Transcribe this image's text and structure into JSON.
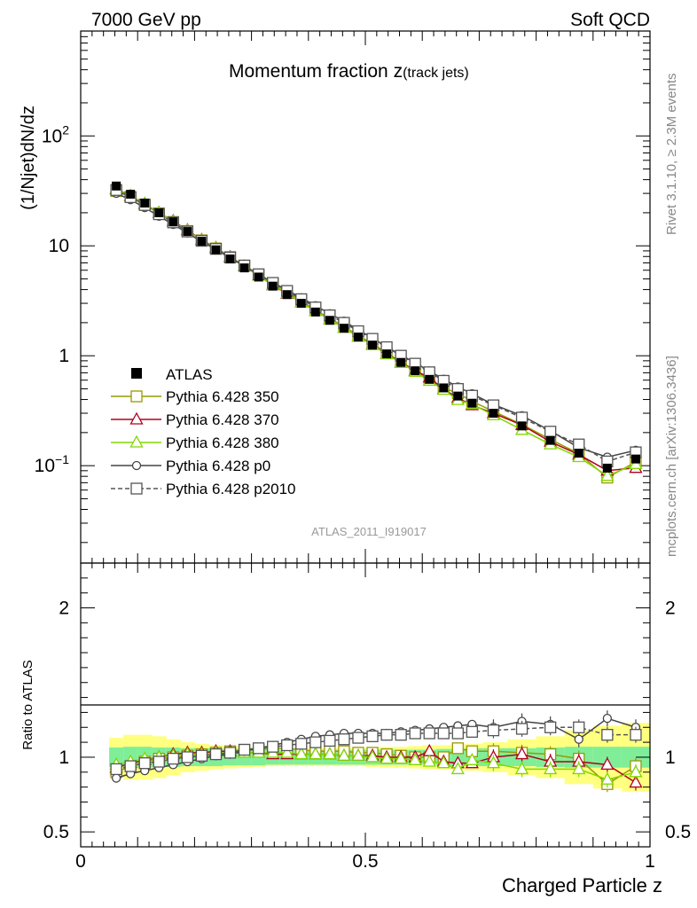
{
  "header": {
    "left": "7000 GeV pp",
    "right": "Soft QCD"
  },
  "side_labels": {
    "rivet": "Rivet 3.1.10, ≥ 2.3M events",
    "mcplots": "mcplots.cern.ch [arXiv:1306.3436]"
  },
  "chart_data": {
    "type": "scatter",
    "title": "Momentum fraction z(track jets)",
    "title_main": "Momentum fraction ",
    "title_var": "z",
    "title_sub": "(track jets)",
    "analysis": "ATLAS_2011_I919017",
    "xlabel": "Charged Particle z",
    "ylabel": "(1/Njet)dN/dz",
    "ratio_ylabel": "Ratio to ATLAS",
    "xlim": [
      0,
      1
    ],
    "ylim": [
      0.013,
      900
    ],
    "yscale": "log",
    "ratio_ylim": [
      0.4,
      2.3
    ],
    "x_ticks": [
      {
        "v": 0,
        "label": "0"
      },
      {
        "v": 0.5,
        "label": "0.5"
      },
      {
        "v": 1,
        "label": "1"
      }
    ],
    "y_ticks": [
      {
        "v": 0.1,
        "base": "10",
        "exp": "−1"
      },
      {
        "v": 1,
        "base": "1",
        "exp": ""
      },
      {
        "v": 10,
        "base": "10",
        "exp": ""
      },
      {
        "v": 100,
        "base": "10",
        "exp": "2"
      }
    ],
    "ratio_ticks": [
      {
        "v": 0.5,
        "label": "0.5"
      },
      {
        "v": 1,
        "label": "1"
      },
      {
        "v": 2,
        "label": "2"
      }
    ],
    "x": [
      0.0625,
      0.0875,
      0.1125,
      0.1375,
      0.1625,
      0.1875,
      0.2125,
      0.2375,
      0.2625,
      0.2875,
      0.3125,
      0.3375,
      0.3625,
      0.3875,
      0.4125,
      0.4375,
      0.4625,
      0.4875,
      0.5125,
      0.5375,
      0.5625,
      0.5875,
      0.6125,
      0.6375,
      0.6625,
      0.6875,
      0.725,
      0.775,
      0.825,
      0.875,
      0.925,
      0.975
    ],
    "data": {
      "name": "ATLAS",
      "values": [
        35,
        29.5,
        24.5,
        20,
        16.5,
        13.5,
        11,
        9.2,
        7.6,
        6.3,
        5.2,
        4.3,
        3.6,
        3.0,
        2.5,
        2.1,
        1.78,
        1.48,
        1.25,
        1.04,
        0.87,
        0.73,
        0.61,
        0.51,
        0.43,
        0.37,
        0.3,
        0.23,
        0.17,
        0.13,
        0.095,
        0.115
      ],
      "band_inner": [
        0.065,
        0.07,
        0.07,
        0.065,
        0.065,
        0.06,
        0.06,
        0.06,
        0.055,
        0.055,
        0.055,
        0.05,
        0.05,
        0.05,
        0.05,
        0.05,
        0.05,
        0.05,
        0.05,
        0.05,
        0.05,
        0.05,
        0.05,
        0.055,
        0.055,
        0.06,
        0.06,
        0.06,
        0.065,
        0.07,
        0.07,
        0.07
      ],
      "band_outer": [
        0.13,
        0.15,
        0.15,
        0.14,
        0.12,
        0.1,
        0.09,
        0.08,
        0.075,
        0.07,
        0.065,
        0.06,
        0.06,
        0.06,
        0.06,
        0.06,
        0.06,
        0.06,
        0.065,
        0.07,
        0.07,
        0.075,
        0.08,
        0.08,
        0.085,
        0.09,
        0.1,
        0.12,
        0.14,
        0.18,
        0.21,
        0.23
      ]
    },
    "series": [
      {
        "name": "Pythia 6.428 350",
        "color": "#999900",
        "marker": "square",
        "dash": "",
        "ratio": [
          0.9,
          0.94,
          0.97,
          0.99,
          1.0,
          1.01,
          1.02,
          1.03,
          1.04,
          1.05,
          1.05,
          1.06,
          1.06,
          1.05,
          1.04,
          1.04,
          1.04,
          1.03,
          1.03,
          1.02,
          1.01,
          1.0,
          1.0,
          1.0,
          1.06,
          1.04,
          1.04,
          1.03,
          1.02,
          0.99,
          0.82,
          0.94
        ]
      },
      {
        "name": "Pythia 6.428 370",
        "color": "#b00020",
        "marker": "triangle",
        "dash": "",
        "ratio": [
          0.93,
          0.96,
          0.98,
          1.0,
          1.02,
          1.03,
          1.03,
          1.04,
          1.04,
          1.03,
          1.03,
          1.02,
          1.02,
          1.02,
          1.02,
          1.02,
          1.01,
          1.01,
          1.01,
          1.0,
          1.0,
          1.0,
          1.04,
          0.97,
          0.96,
          0.96,
          1.0,
          1.02,
          0.97,
          0.97,
          0.95,
          0.83
        ]
      },
      {
        "name": "Pythia 6.428 380",
        "color": "#80d800",
        "marker": "triangle",
        "dash": "",
        "ratio": [
          0.95,
          0.97,
          0.99,
          1.0,
          1.01,
          1.02,
          1.02,
          1.03,
          1.03,
          1.03,
          1.03,
          1.03,
          1.03,
          1.02,
          1.02,
          1.02,
          1.01,
          1.01,
          1.0,
          0.99,
          0.99,
          0.98,
          0.97,
          0.96,
          0.92,
          0.98,
          0.96,
          0.92,
          0.92,
          0.92,
          0.85,
          0.9
        ]
      },
      {
        "name": "Pythia 6.428 p0",
        "color": "#444444",
        "marker": "circle",
        "dash": "",
        "ratio": [
          0.86,
          0.89,
          0.91,
          0.93,
          0.95,
          0.97,
          0.99,
          1.01,
          1.02,
          1.04,
          1.06,
          1.08,
          1.1,
          1.12,
          1.14,
          1.15,
          1.16,
          1.16,
          1.16,
          1.16,
          1.17,
          1.18,
          1.19,
          1.2,
          1.21,
          1.22,
          1.2,
          1.24,
          1.22,
          1.12,
          1.26,
          1.2
        ]
      },
      {
        "name": "Pythia 6.428 p2010",
        "color": "#555555",
        "marker": "square",
        "dash": "5,3",
        "ratio": [
          0.92,
          0.94,
          0.96,
          0.97,
          0.99,
          1.0,
          1.01,
          1.02,
          1.03,
          1.05,
          1.06,
          1.07,
          1.08,
          1.09,
          1.1,
          1.11,
          1.12,
          1.13,
          1.14,
          1.15,
          1.15,
          1.16,
          1.16,
          1.16,
          1.16,
          1.17,
          1.18,
          1.19,
          1.2,
          1.2,
          1.15,
          1.15
        ]
      }
    ]
  }
}
